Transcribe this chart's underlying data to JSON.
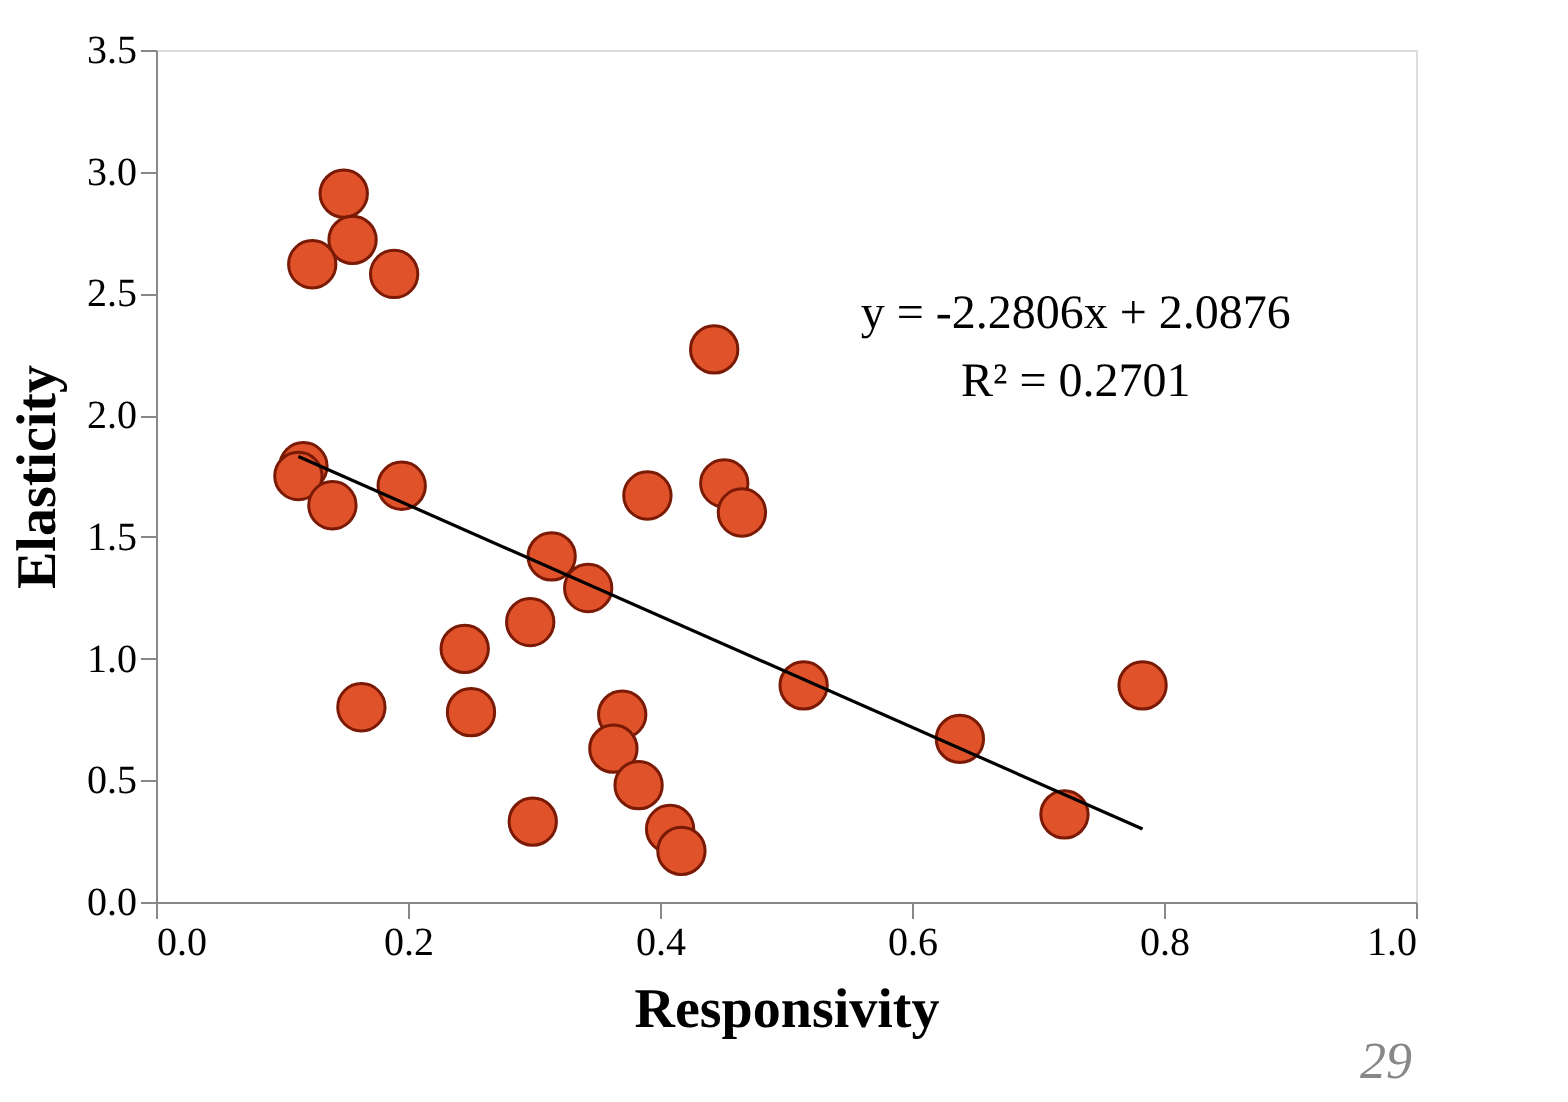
{
  "chart_data": {
    "type": "scatter",
    "xlabel": "Responsivity",
    "ylabel": "Elasticity",
    "xlim": [
      0,
      1
    ],
    "xticks": [
      {
        "value": 0,
        "label": "0.0"
      },
      {
        "value": 0.2,
        "label": "0.2"
      },
      {
        "value": 0.4,
        "label": "0.4"
      },
      {
        "value": 0.6,
        "label": "0.6"
      },
      {
        "value": 0.8,
        "label": "0.8"
      },
      {
        "value": 1,
        "label": "1.0"
      }
    ],
    "ylim": [
      0,
      3.5
    ],
    "yticks": [
      {
        "value": 0,
        "label": "0.0"
      },
      0.5,
      {
        "value": 1,
        "label": "1.0"
      },
      1.5,
      {
        "value": 2,
        "label": "2.0"
      },
      2.5,
      {
        "value": 3,
        "label": "3.0"
      },
      3.5
    ],
    "grid": false,
    "series": [
      {
        "marker": "circle",
        "color": "#e0522a",
        "x": [
          0.149,
          0.156,
          0.124,
          0.189,
          0.117,
          0.113,
          0.14,
          0.195,
          0.314,
          0.343,
          0.297,
          0.245,
          0.163,
          0.25,
          0.37,
          0.363,
          0.383,
          0.299,
          0.408,
          0.417,
          0.514,
          0.443,
          0.39,
          0.451,
          0.465,
          0.638,
          0.721,
          0.783
        ],
        "values": [
          2.91,
          2.72,
          2.62,
          2.58,
          1.79,
          1.75,
          1.63,
          1.71,
          1.42,
          1.29,
          1.15,
          1.04,
          0.8,
          0.78,
          0.77,
          0.63,
          0.48,
          0.33,
          0.3,
          0.21,
          0.89,
          2.27,
          1.67,
          1.72,
          1.6,
          0.67,
          0.36,
          0.89
        ]
      },
      {
        "type": "line",
        "marker": "none",
        "line_style": "solid",
        "color": "#000000",
        "x": [
          0.113,
          0.783
        ],
        "values": [
          1.83,
          0.3
        ]
      }
    ],
    "annotations": [
      "y = -2.2806x + 2.0876",
      "R² = 0.2701",
      "29"
    ]
  }
}
